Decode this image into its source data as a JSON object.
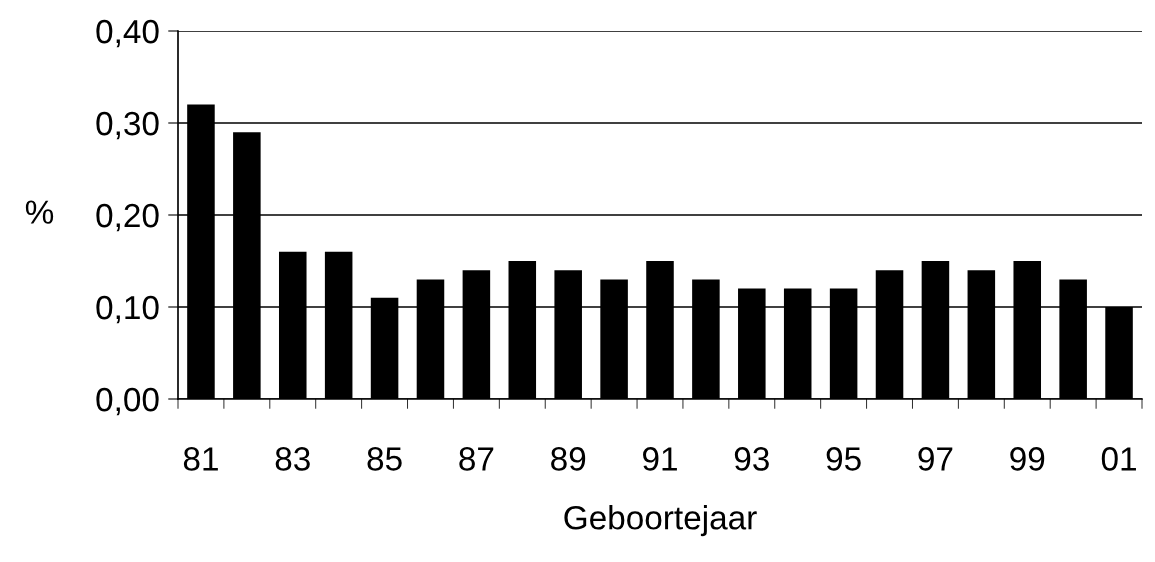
{
  "chart_data": {
    "type": "bar",
    "xlabel": "Geboortejaar",
    "ylabel": "%",
    "categories": [
      "81",
      null,
      "83",
      null,
      "85",
      null,
      "87",
      null,
      "89",
      null,
      "91",
      null,
      "93",
      null,
      "95",
      null,
      "97",
      null,
      "99",
      null,
      "01"
    ],
    "values": [
      0.32,
      0.29,
      0.16,
      0.16,
      0.11,
      0.13,
      0.14,
      0.15,
      0.14,
      0.13,
      0.15,
      0.13,
      0.12,
      0.12,
      0.12,
      0.14,
      0.15,
      0.14,
      0.15,
      0.13,
      0.1
    ],
    "color": "#000000",
    "ylim": [
      0,
      0.4
    ],
    "yticks": [
      {
        "value": 0,
        "label": "0,00"
      },
      {
        "value": 0.1,
        "label": "0,10"
      },
      {
        "value": 0.2,
        "label": "0,20"
      },
      {
        "value": 0.3,
        "label": "0,30"
      },
      {
        "value": 0.4,
        "label": "0,40"
      }
    ],
    "grid": "y",
    "legend": false
  }
}
